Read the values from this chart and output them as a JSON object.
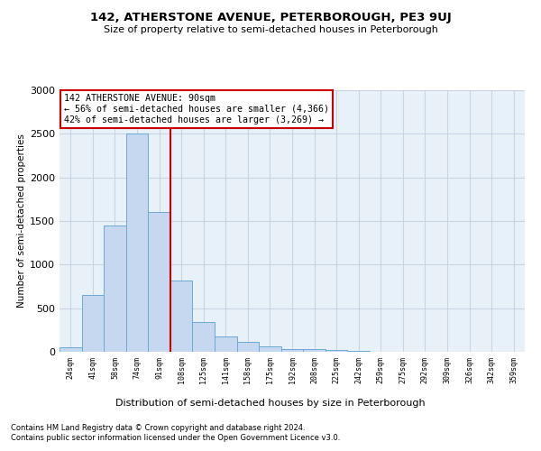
{
  "title": "142, ATHERSTONE AVENUE, PETERBOROUGH, PE3 9UJ",
  "subtitle": "Size of property relative to semi-detached houses in Peterborough",
  "xlabel": "Distribution of semi-detached houses by size in Peterborough",
  "ylabel": "Number of semi-detached properties",
  "annotation_line1": "142 ATHERSTONE AVENUE: 90sqm",
  "annotation_line2": "← 56% of semi-detached houses are smaller (4,366)",
  "annotation_line3": "42% of semi-detached houses are larger (3,269) →",
  "footer1": "Contains HM Land Registry data © Crown copyright and database right 2024.",
  "footer2": "Contains public sector information licensed under the Open Government Licence v3.0.",
  "bar_labels": [
    "24sqm",
    "41sqm",
    "58sqm",
    "74sqm",
    "91sqm",
    "108sqm",
    "125sqm",
    "141sqm",
    "158sqm",
    "175sqm",
    "192sqm",
    "208sqm",
    "225sqm",
    "242sqm",
    "259sqm",
    "275sqm",
    "292sqm",
    "309sqm",
    "326sqm",
    "342sqm",
    "359sqm"
  ],
  "bar_values": [
    50,
    650,
    1450,
    2500,
    1600,
    820,
    345,
    175,
    115,
    65,
    35,
    30,
    20,
    10,
    5,
    3,
    2,
    2,
    1,
    1,
    1
  ],
  "bar_color": "#c5d8f0",
  "bar_edge_color": "#6aaad4",
  "highlight_index": 4,
  "highlight_line_color": "#cc0000",
  "annotation_box_color": "#ffffff",
  "annotation_box_edge": "#cc0000",
  "background_color": "#ffffff",
  "plot_bg_color": "#e8f0f8",
  "grid_color": "#c8d4e4",
  "ylim": [
    0,
    3000
  ],
  "yticks": [
    0,
    500,
    1000,
    1500,
    2000,
    2500,
    3000
  ]
}
